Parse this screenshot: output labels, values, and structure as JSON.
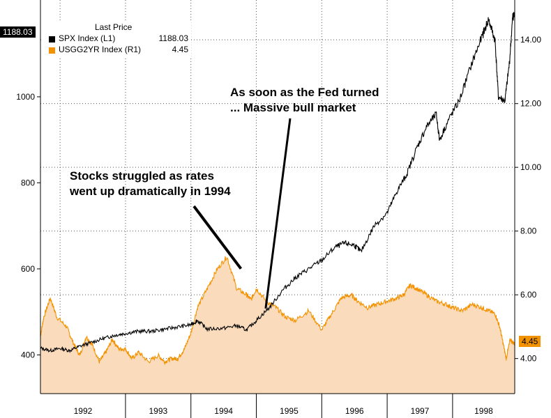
{
  "chart_data": {
    "type": "line",
    "title": "",
    "legend": {
      "header": "Last Price",
      "entries": [
        {
          "name": "SPX Index  (L1)",
          "value": "1188.03",
          "color": "#000000"
        },
        {
          "name": "USGG2YR Index  (R1)",
          "value": "4.45",
          "color": "#f39200"
        }
      ],
      "placement": "top-left"
    },
    "x_range": [
      1991.7,
      1998.95
    ],
    "x_tick_labels": [
      "1992",
      "1993",
      "1994",
      "1995",
      "1996",
      "1997",
      "1998"
    ],
    "left_axis": {
      "range": [
        310,
        1225
      ],
      "ticks": [
        "400",
        "600",
        "800",
        "1000"
      ]
    },
    "right_axis": {
      "range": [
        2.9,
        15.25
      ],
      "ticks": [
        "4.00",
        "6.00",
        "8.00",
        "10.00",
        "12.00",
        "14.00"
      ]
    },
    "grid": true,
    "last_value_tags": {
      "left": "1188.03",
      "right": "4.45"
    },
    "series": [
      {
        "name": "SPX Index  (L1)",
        "axis": "left",
        "color": "#000000",
        "style": "line",
        "x": [
          1991.7,
          1991.85,
          1992.0,
          1992.15,
          1992.3,
          1992.5,
          1992.7,
          1992.85,
          1993.0,
          1993.2,
          1993.4,
          1993.6,
          1993.8,
          1994.0,
          1994.1,
          1994.25,
          1994.5,
          1994.7,
          1994.85,
          1995.0,
          1995.2,
          1995.4,
          1995.6,
          1995.8,
          1996.0,
          1996.2,
          1996.35,
          1996.5,
          1996.6,
          1996.8,
          1997.0,
          1997.15,
          1997.3,
          1997.45,
          1997.6,
          1997.75,
          1997.8,
          1997.95,
          1998.1,
          1998.3,
          1998.45,
          1998.55,
          1998.65,
          1998.7,
          1998.8,
          1998.87,
          1998.92,
          1998.95
        ],
        "y": [
          416,
          410,
          415,
          410,
          420,
          430,
          440,
          446,
          450,
          455,
          455,
          460,
          465,
          470,
          480,
          460,
          462,
          468,
          458,
          480,
          510,
          550,
          580,
          600,
          620,
          650,
          660,
          655,
          640,
          700,
          730,
          780,
          820,
          880,
          930,
          960,
          900,
          950,
          990,
          1080,
          1140,
          1180,
          1130,
          1000,
          990,
          1080,
          1188,
          1188.03
        ]
      },
      {
        "name": "USGG2YR Index  (R1)",
        "axis": "right",
        "color": "#f39200",
        "style": "area",
        "x": [
          1991.7,
          1991.75,
          1991.85,
          1991.95,
          1992.1,
          1992.2,
          1992.3,
          1992.4,
          1992.5,
          1992.6,
          1992.7,
          1992.8,
          1992.9,
          1993.0,
          1993.1,
          1993.2,
          1993.35,
          1993.5,
          1993.6,
          1993.7,
          1993.8,
          1993.9,
          1994.0,
          1994.1,
          1994.25,
          1994.4,
          1994.55,
          1994.7,
          1994.85,
          1994.92,
          1995.0,
          1995.15,
          1995.3,
          1995.45,
          1995.6,
          1995.8,
          1996.0,
          1996.15,
          1996.3,
          1996.45,
          1996.55,
          1996.7,
          1996.85,
          1997.0,
          1997.15,
          1997.25,
          1997.35,
          1997.45,
          1997.6,
          1997.75,
          1997.9,
          1998.0,
          1998.15,
          1998.3,
          1998.45,
          1998.55,
          1998.65,
          1998.72,
          1998.78,
          1998.82,
          1998.88,
          1998.95
        ],
        "y": [
          4.7,
          5.3,
          5.9,
          5.3,
          5.0,
          4.5,
          4.1,
          4.7,
          4.4,
          3.9,
          4.2,
          4.6,
          4.3,
          4.3,
          4.0,
          4.2,
          3.9,
          4.1,
          3.9,
          4.0,
          4.0,
          4.3,
          4.8,
          5.6,
          6.2,
          6.8,
          7.2,
          6.2,
          6.0,
          5.85,
          6.2,
          5.8,
          5.6,
          5.3,
          5.2,
          5.5,
          4.9,
          5.4,
          5.9,
          6.0,
          5.8,
          5.6,
          5.7,
          5.8,
          5.9,
          6.0,
          6.3,
          6.2,
          6.0,
          5.8,
          5.7,
          5.6,
          5.5,
          5.7,
          5.6,
          5.5,
          5.4,
          5.0,
          4.4,
          4.0,
          4.6,
          4.45
        ]
      }
    ],
    "annotations": [
      {
        "text": "Stocks struggled as rates\nwent up dramatically in 1994",
        "points_to": {
          "x": 1994.85,
          "axis": "right",
          "y": 6.6
        }
      },
      {
        "text": "As soon as the Fed turned\n... Massive bull market",
        "points_to": {
          "x": 1995.1,
          "axis": "left",
          "y": 495
        }
      }
    ]
  }
}
